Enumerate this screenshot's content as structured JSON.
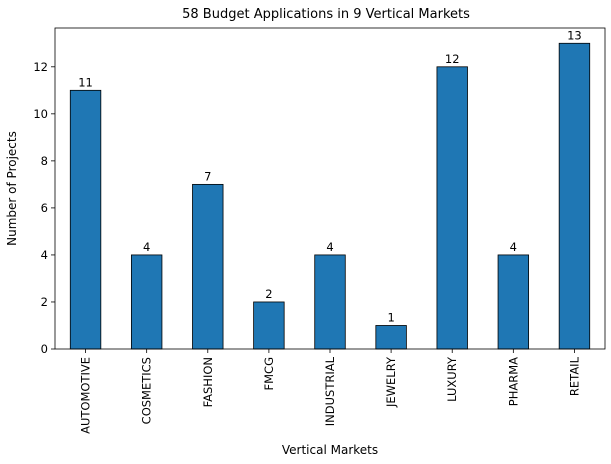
{
  "chart_data": {
    "type": "bar",
    "title": "58 Budget Applications in 9 Vertical Markets",
    "xlabel": "Vertical Markets",
    "ylabel": "Number of Projects",
    "categories": [
      "AUTOMOTIVE",
      "COSMETICS",
      "FASHION",
      "FMCG",
      "INDUSTRIAL",
      "JEWELRY",
      "LUXURY",
      "PHARMA",
      "RETAIL"
    ],
    "values": [
      11,
      4,
      7,
      2,
      4,
      1,
      12,
      4,
      13
    ],
    "ylim": [
      0,
      13.65
    ],
    "yticks": [
      0,
      2,
      4,
      6,
      8,
      10,
      12
    ],
    "bar_color": "#1f77b4",
    "label_color": "#0d2b4a",
    "grid": false,
    "legend": "none"
  }
}
